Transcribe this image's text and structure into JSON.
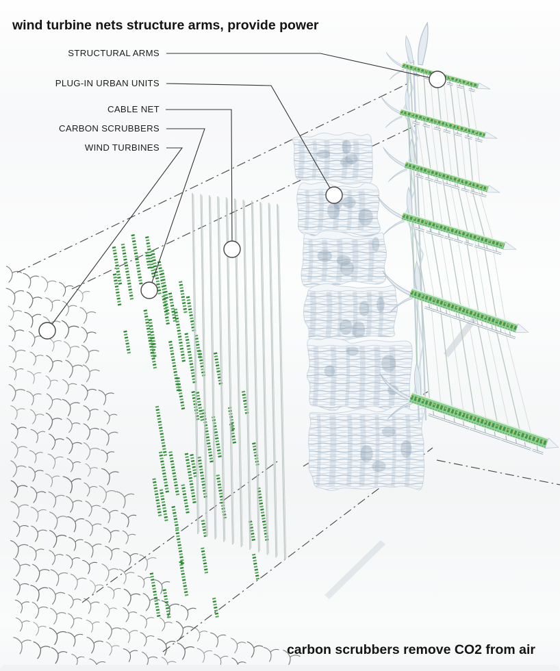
{
  "title": "wind turbine nets structure arms, provide power",
  "caption": "carbon scrubbers remove CO2 from air",
  "callouts": [
    {
      "id": "structural-arms",
      "text": "STRUCTURAL ARMS"
    },
    {
      "id": "plug-in-urban-units",
      "text": "PLUG-IN URBAN UNITS"
    },
    {
      "id": "cable-net",
      "text": "CABLE NET"
    },
    {
      "id": "carbon-scrubbers",
      "text": "CARBON SCRUBBERS"
    },
    {
      "id": "wind-turbines",
      "text": "WIND TURBINES"
    }
  ],
  "colors": {
    "line_black": "#333333",
    "glyph_gray": "#4d4d4d",
    "scrubber_green_dark": "#2a8731",
    "scrubber_green_light": "#43a049",
    "arm_green_base": "#8fd194",
    "arm_green_dark": "#3f9144",
    "arm_yellow": "#d9c14e",
    "structure_gray": "#c2cfd9",
    "blade_fill": "#e3ebf1",
    "blade_stroke": "#b2c2ce",
    "cable_gray": "#b9c8bd",
    "cable_light": "#d3dcd4",
    "net_gray": "#bfc9c5",
    "net_dark": "#a7b3af",
    "block_fill": "#f4f7fa",
    "block_stroke": "#ccd7e1",
    "block_line": "#c2d0dc",
    "block_line_dark": "#9fb2c2",
    "block_shade": "#aebfcd",
    "block_patch": "#7f95a8",
    "shadow_gray": "#c6ced5",
    "circle_fill": "#ffffff",
    "circle_stroke": "#444444"
  }
}
